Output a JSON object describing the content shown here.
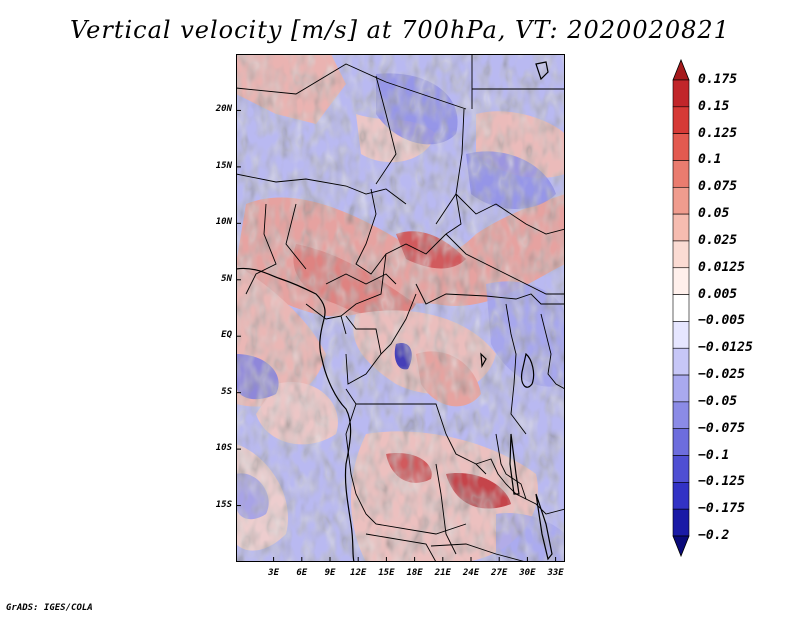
{
  "title": "Vertical velocity [m/s] at 700hPa, VT: 2020020821",
  "credit": "GrADS: IGES/COLA",
  "map": {
    "lat_range": [
      -20,
      25
    ],
    "lon_range": [
      -1,
      34
    ],
    "lat_ticks": [
      {
        "value": 20,
        "label": "20N"
      },
      {
        "value": 15,
        "label": "15N"
      },
      {
        "value": 10,
        "label": "10N"
      },
      {
        "value": 5,
        "label": "5N"
      },
      {
        "value": 0,
        "label": "EQ"
      },
      {
        "value": -5,
        "label": "5S"
      },
      {
        "value": -10,
        "label": "10S"
      },
      {
        "value": -15,
        "label": "15S"
      }
    ],
    "lon_ticks": [
      {
        "value": 3,
        "label": "3E"
      },
      {
        "value": 6,
        "label": "6E"
      },
      {
        "value": 9,
        "label": "9E"
      },
      {
        "value": 12,
        "label": "12E"
      },
      {
        "value": 15,
        "label": "15E"
      },
      {
        "value": 18,
        "label": "18E"
      },
      {
        "value": 21,
        "label": "21E"
      },
      {
        "value": 24,
        "label": "24E"
      },
      {
        "value": 27,
        "label": "27E"
      },
      {
        "value": 30,
        "label": "30E"
      },
      {
        "value": 33,
        "label": "33E"
      }
    ]
  },
  "colorbar": {
    "unit": "m/s",
    "labels": [
      "0.175",
      "0.15",
      "0.125",
      "0.1",
      "0.075",
      "0.05",
      "0.025",
      "0.0125",
      "0.005",
      "−0.005",
      "−0.0125",
      "−0.025",
      "−0.05",
      "−0.075",
      "−0.1",
      "−0.125",
      "−0.175",
      "−0.2"
    ],
    "colors": [
      "#a51a1c",
      "#c1262a",
      "#d63a36",
      "#e35a50",
      "#ea7c6f",
      "#f09c8e",
      "#f6bcb0",
      "#fbdbd3",
      "#fff0ec",
      "#ffffff",
      "#e6e6ff",
      "#c7c7f7",
      "#a9a9ef",
      "#8b8be6",
      "#6d6ddd",
      "#4f4fd3",
      "#3232c5",
      "#1a1aa6",
      "#0a0a7a"
    ]
  }
}
